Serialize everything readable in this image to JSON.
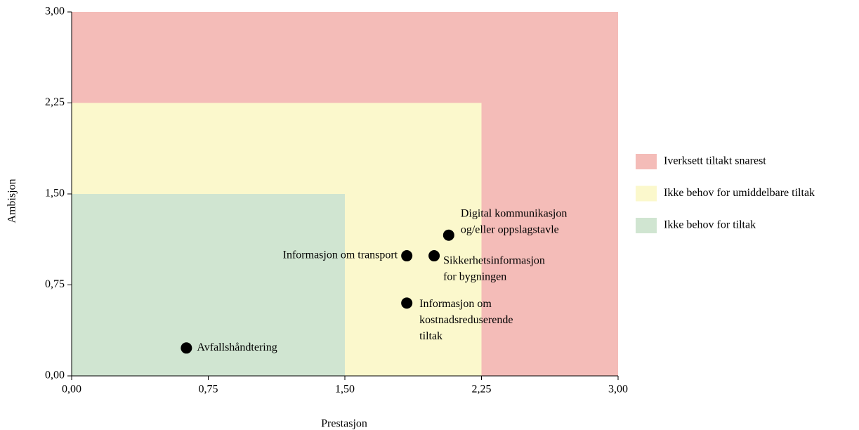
{
  "chart_data": {
    "type": "scatter",
    "xlabel": "Prestasjon",
    "ylabel": "Ambisjon",
    "xlim": [
      0,
      3
    ],
    "ylim": [
      0,
      3
    ],
    "xticks": [
      {
        "value": 0,
        "label": "0,00"
      },
      {
        "value": 0.75,
        "label": "0,75"
      },
      {
        "value": 1.5,
        "label": "1,50"
      },
      {
        "value": 2.25,
        "label": "2,25"
      },
      {
        "value": 3,
        "label": "3,00"
      }
    ],
    "yticks": [
      {
        "value": 0,
        "label": "0,00"
      },
      {
        "value": 0.75,
        "label": "0,75"
      },
      {
        "value": 1.5,
        "label": "1,50"
      },
      {
        "value": 2.25,
        "label": "2,25"
      },
      {
        "value": 3,
        "label": "3,00"
      }
    ],
    "regions": [
      {
        "name": "Iverksett tiltakt snarest",
        "color": "#f4bcb8",
        "xlim": [
          0,
          3
        ],
        "ylim": [
          0,
          3
        ]
      },
      {
        "name": "Ikke behov for umiddelbare tiltak",
        "color": "#fbf8cc",
        "xlim": [
          0,
          2.25
        ],
        "ylim": [
          0,
          2.25
        ]
      },
      {
        "name": "Ikke behov for tiltak",
        "color": "#d0e5d1",
        "xlim": [
          0,
          1.5
        ],
        "ylim": [
          0,
          1.5
        ]
      }
    ],
    "color": "#000000",
    "x": [
      0.63,
      1.84,
      1.99,
      2.07,
      1.84
    ],
    "y": [
      0.23,
      0.99,
      0.99,
      1.16,
      0.6
    ],
    "labels": [
      [
        "Avfallshåndtering"
      ],
      [
        "Informasjon om transport"
      ],
      [
        "Sikkerhetsinformasjon",
        "for bygningen"
      ],
      [
        "Digital kommunikasjon",
        "og/eller oppslagstavle"
      ],
      [
        "Informasjon om",
        "kostnadsreduserende",
        "tiltak"
      ]
    ]
  }
}
